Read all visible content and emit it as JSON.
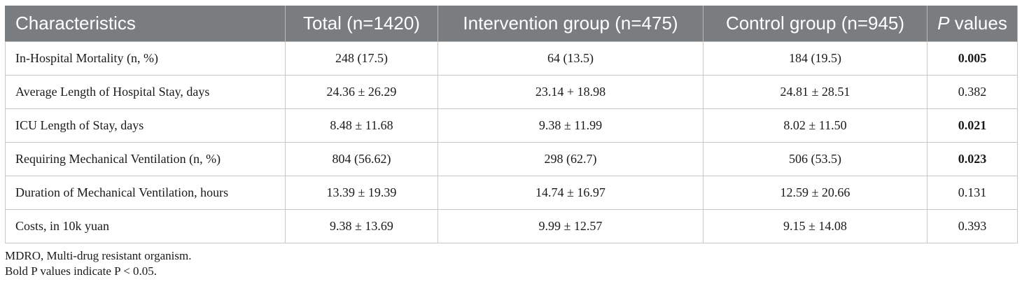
{
  "table": {
    "headers": {
      "characteristics": "Characteristics",
      "total": "Total (n=1420)",
      "intervention": "Intervention group (n=475)",
      "control": "Control group (n=945)",
      "p_italic": "P",
      "p_rest": " values"
    },
    "rows": [
      {
        "label": "In-Hospital Mortality (n, %)",
        "total": "248 (17.5)",
        "intervention": "64 (13.5)",
        "control": "184 (19.5)",
        "p": "0.005",
        "bold": true
      },
      {
        "label": "Average Length of Hospital Stay, days",
        "total": "24.36 ± 26.29",
        "intervention": "23.14 + 18.98",
        "control": "24.81 ± 28.51",
        "p": "0.382",
        "bold": false
      },
      {
        "label": "ICU Length of Stay, days",
        "total": "8.48 ± 11.68",
        "intervention": "9.38 ± 11.99",
        "control": "8.02 ± 11.50",
        "p": "0.021",
        "bold": true
      },
      {
        "label": "Requiring Mechanical Ventilation (n, %)",
        "total": "804 (56.62)",
        "intervention": "298 (62.7)",
        "control": "506 (53.5)",
        "p": "0.023",
        "bold": true
      },
      {
        "label": "Duration of Mechanical Ventilation, hours",
        "total": "13.39 ± 19.39",
        "intervention": "14.74 ± 16.97",
        "control": "12.59 ± 20.66",
        "p": "0.131",
        "bold": false
      },
      {
        "label": "Costs, in 10k yuan",
        "total": "9.38 ± 13.69",
        "intervention": "9.99 ± 12.57",
        "control": "9.15 ± 14.08",
        "p": "0.393",
        "bold": false
      }
    ]
  },
  "notes": {
    "line1": "MDRO, Multi-drug resistant organism.",
    "line2": "Bold P values indicate P < 0.05."
  },
  "colors": {
    "header_bg": "#7a7d7f",
    "header_text": "#ffffff",
    "border": "#c8c8c8"
  }
}
